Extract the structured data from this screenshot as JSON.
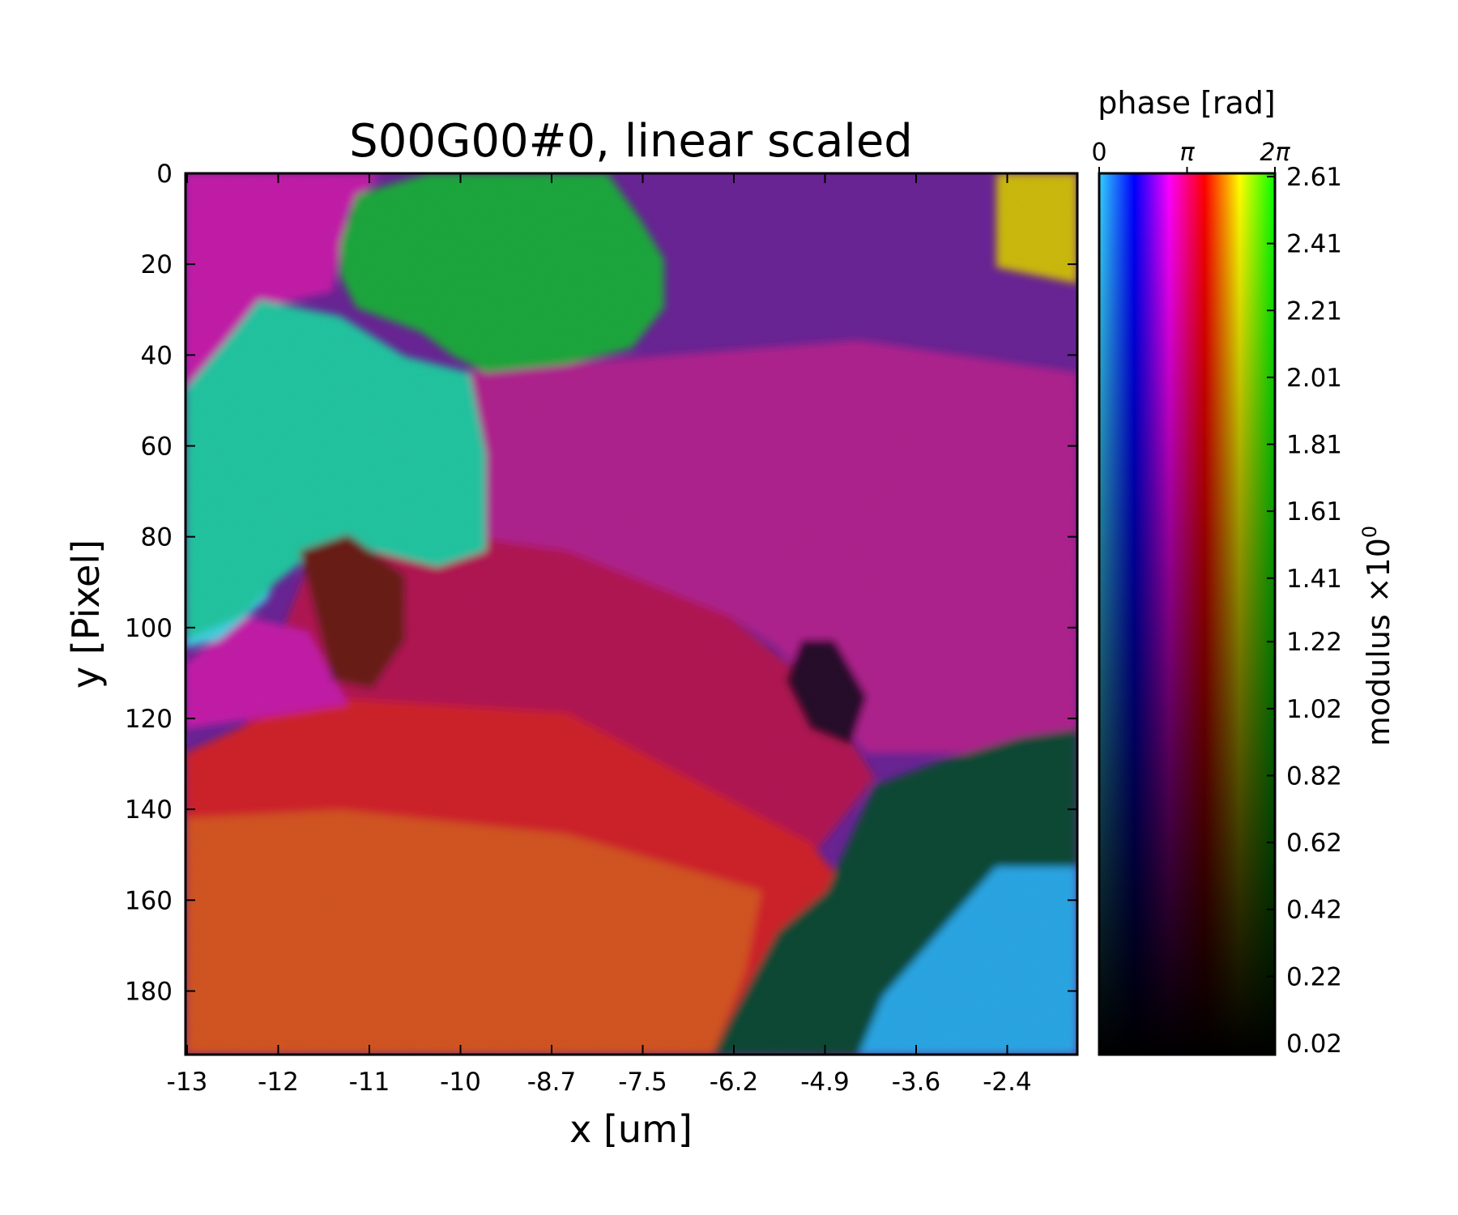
{
  "chart_data": {
    "type": "heatmap",
    "title": "S00G00#0, linear scaled",
    "xlabel": "x [um]",
    "ylabel": "y [Pixel]",
    "x_ticks": [
      "-13",
      "-12",
      "-11",
      "-10",
      "-8.7",
      "-7.5",
      "-6.2",
      "-4.9",
      "-3.6",
      "-2.4"
    ],
    "y_ticks": [
      "0",
      "20",
      "40",
      "60",
      "80",
      "100",
      "120",
      "140",
      "160",
      "180"
    ],
    "ylim": [
      0,
      194
    ],
    "colorbar": {
      "phase_label": "phase [rad]",
      "phase_ticks": [
        "0",
        "π",
        "2π"
      ],
      "modulus_label": "modulus",
      "modulus_exponent": "×10",
      "modulus_exponent_power": "0",
      "modulus_ticks": [
        "2.61",
        "2.41",
        "2.21",
        "2.01",
        "1.81",
        "1.61",
        "1.41",
        "1.22",
        "1.02",
        "0.82",
        "0.62",
        "0.42",
        "0.22",
        "0.02"
      ],
      "modulus_range": [
        0.02,
        2.61
      ],
      "phase_colors": [
        "#33d2ff",
        "#0000ff",
        "#ff00ff",
        "#ff0000",
        "#ffff00",
        "#00ff00"
      ]
    },
    "regions": [
      {
        "name": "green-top",
        "color": "#1aa83c"
      },
      {
        "name": "teal-left",
        "color": "#22c6a2"
      },
      {
        "name": "cyan-left",
        "color": "#3fd2e2"
      },
      {
        "name": "magenta-top-left",
        "color": "#c41fa9"
      },
      {
        "name": "purple-top-right",
        "color": "#6a2496"
      },
      {
        "name": "magenta-middle",
        "color": "#b0208f"
      },
      {
        "name": "crimson-middle",
        "color": "#b21552"
      },
      {
        "name": "red-lower",
        "color": "#d0202a"
      },
      {
        "name": "orange-bottom",
        "color": "#d45520"
      },
      {
        "name": "dark-green-bottom-right",
        "color": "#0f4a36"
      },
      {
        "name": "blue-bottom-right",
        "color": "#2aa7e6"
      },
      {
        "name": "yellow-top-right",
        "color": "#cdbb10"
      },
      {
        "name": "brown-patch",
        "color": "#6a1a16"
      },
      {
        "name": "dark-spot",
        "color": "#250d2a"
      }
    ]
  }
}
